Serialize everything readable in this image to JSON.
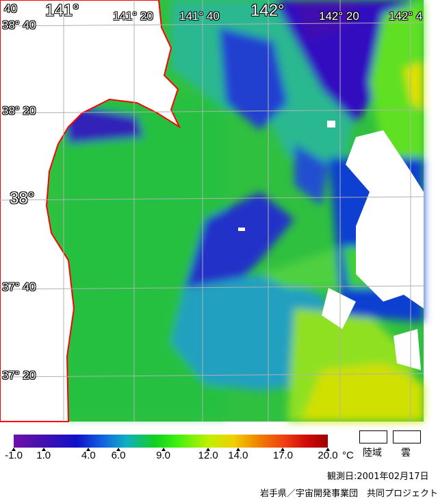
{
  "map": {
    "longitude_labels": [
      "141°",
      "141° 20",
      "141° 40",
      "142°",
      "142° 20",
      "142° 4"
    ],
    "latitude_labels": [
      "38° 40",
      "38° 20",
      "38°",
      "37° 40",
      "37° 20"
    ],
    "corner_label": "40",
    "colors": {
      "land": "#ffffff",
      "coastline": "#ff0000",
      "cloud": "#ffffff",
      "grid": "#b0b0b0"
    }
  },
  "legend": {
    "ticks": [
      "-1.0",
      "1.0",
      "4.0",
      "6.0",
      "9.0",
      "12.0",
      "14.0",
      "17.0",
      "20.0"
    ],
    "unit": "°C",
    "land_label": "陸域",
    "cloud_label": "雲"
  },
  "footer": {
    "observation_date": "観測日:2001年02月17日",
    "credit": "岩手県／宇宙開発事業団　共同プロジェクト"
  }
}
